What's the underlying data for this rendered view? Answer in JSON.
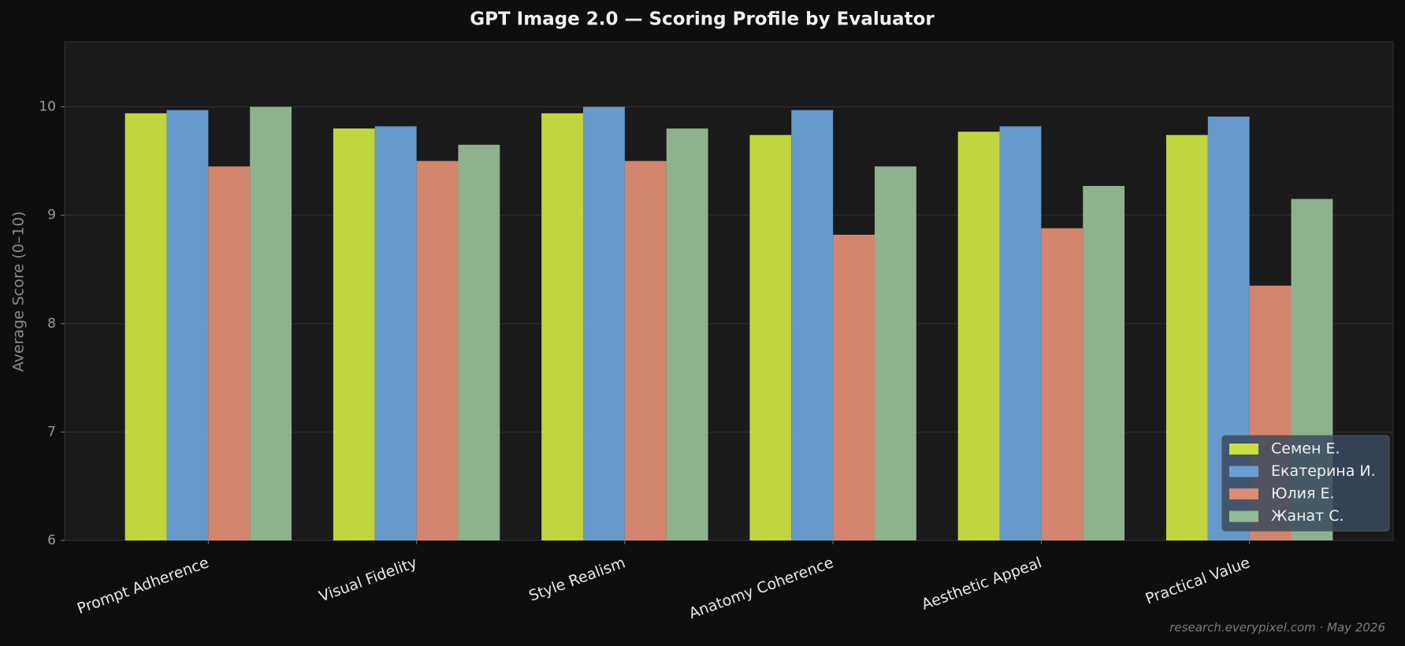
{
  "chart_data": {
    "type": "bar",
    "title": "GPT Image 2.0 — Scoring Profile by Evaluator",
    "ylabel": "Average Score (0–10)",
    "categories": [
      "Prompt Adherence",
      "Visual Fidelity",
      "Style Realism",
      "Anatomy Coherence",
      "Aesthetic Appeal",
      "Practical Value"
    ],
    "series": [
      {
        "name": "Семен Е.",
        "color": "#cadf40",
        "values": [
          9.94,
          9.8,
          9.94,
          9.74,
          9.77,
          9.74
        ]
      },
      {
        "name": "Екатерина И.",
        "color": "#6b9fd4",
        "values": [
          9.97,
          9.82,
          10.0,
          9.97,
          9.82,
          9.91
        ]
      },
      {
        "name": "Юлия Е.",
        "color": "#de8b72",
        "values": [
          9.45,
          9.5,
          9.5,
          8.82,
          8.88,
          8.35
        ]
      },
      {
        "name": "Жанат С.",
        "color": "#93bb93",
        "values": [
          10.0,
          9.65,
          9.8,
          9.45,
          9.27,
          9.15
        ]
      }
    ],
    "ylim": [
      6,
      10.6
    ],
    "yticks": [
      6,
      7,
      8,
      9,
      10
    ],
    "grid": true,
    "legend": "lower right",
    "footnote": "research.everypixel.com · May 2026"
  }
}
